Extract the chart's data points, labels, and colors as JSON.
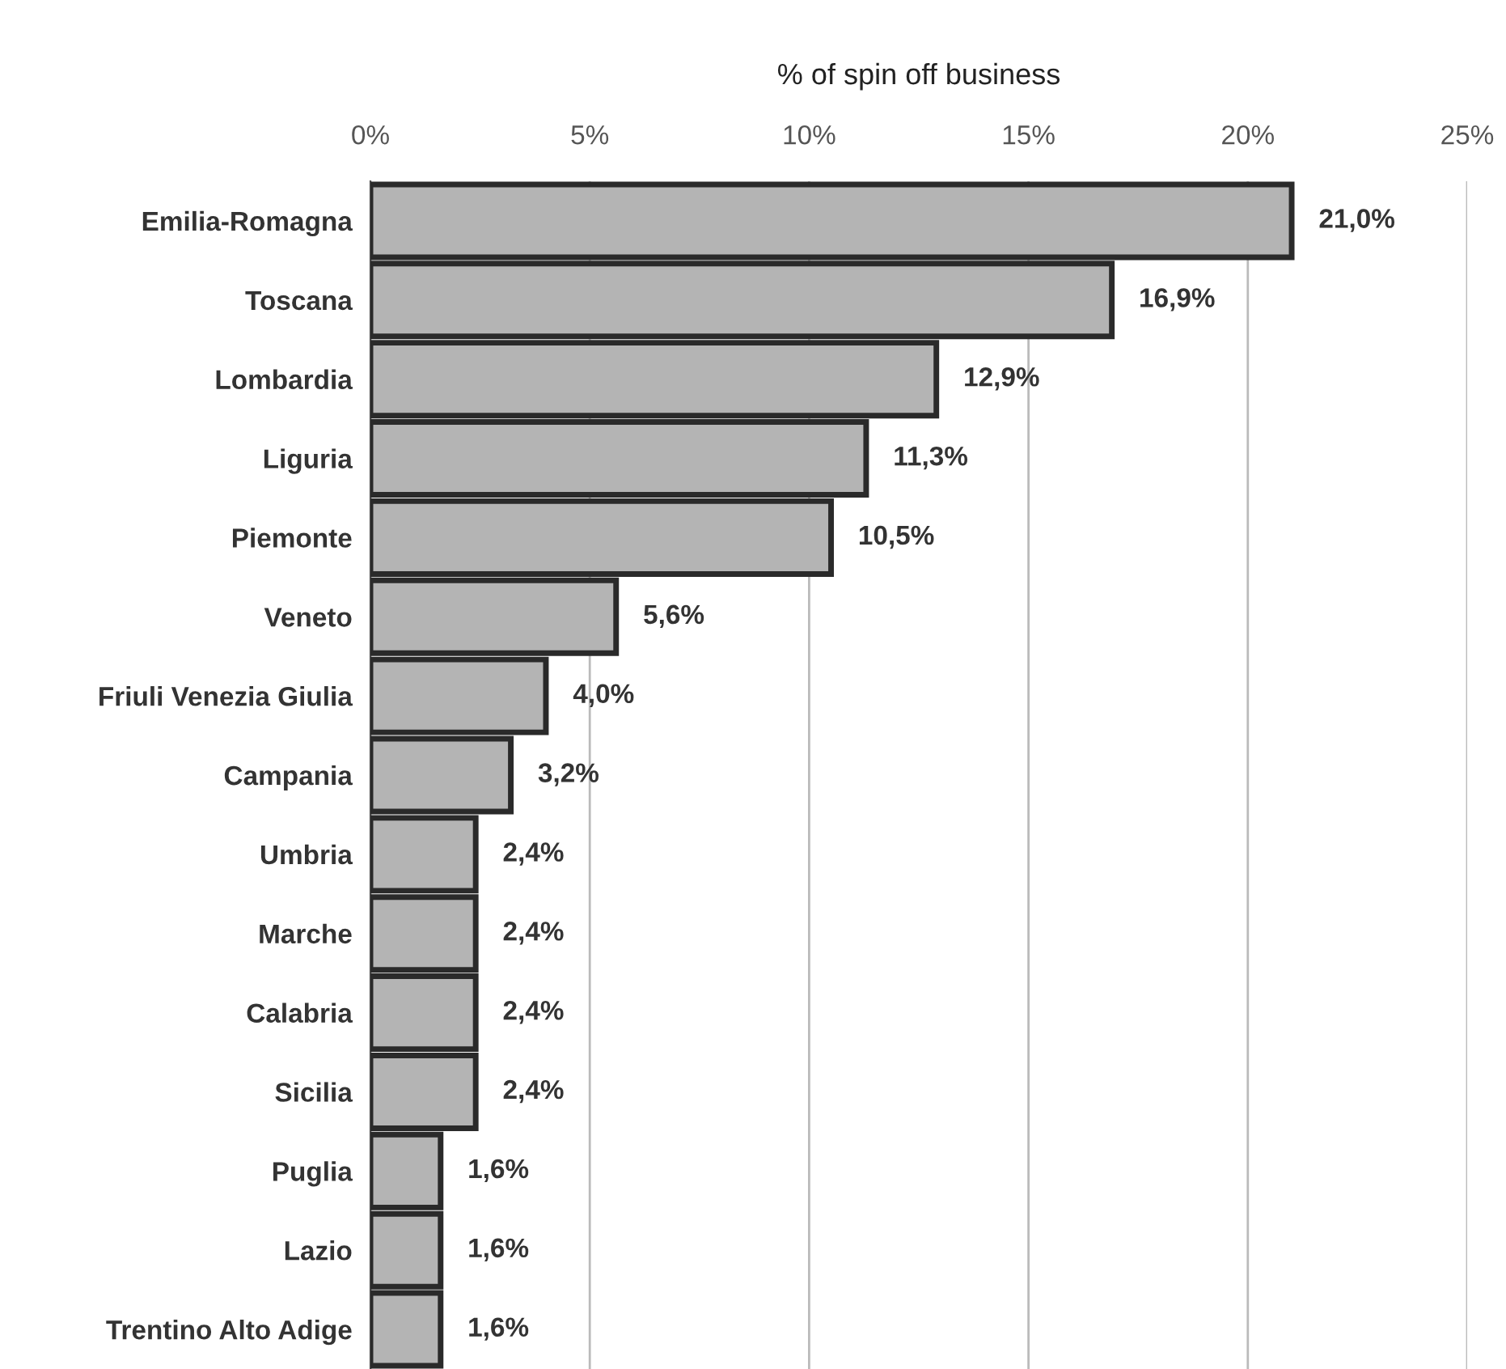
{
  "chart_data": {
    "type": "bar",
    "orientation": "horizontal",
    "xlabel": "% of spin off business",
    "categories": [
      "Emilia-Romagna",
      "Toscana",
      "Lombardia",
      "Liguria",
      "Piemonte",
      "Veneto",
      "Friuli Venezia Giulia",
      "Campania",
      "Umbria",
      "Marche",
      "Calabria",
      "Sicilia",
      "Puglia",
      "Lazio",
      "Trentino Alto Adige"
    ],
    "values": [
      21.0,
      16.9,
      12.9,
      11.3,
      10.5,
      5.6,
      4.0,
      3.2,
      2.4,
      2.4,
      2.4,
      2.4,
      1.6,
      1.6,
      1.6
    ],
    "value_labels": [
      "21,0%",
      "16,9%",
      "12,9%",
      "11,3%",
      "10,5%",
      "5,6%",
      "4,0%",
      "3,2%",
      "2,4%",
      "2,4%",
      "2,4%",
      "2,4%",
      "1,6%",
      "1,6%",
      "1,6%"
    ],
    "color": "#b4b4b4",
    "xlim": [
      0,
      25
    ],
    "xticks": [
      {
        "value": 0,
        "label": "0%"
      },
      {
        "value": 5,
        "label": "5%"
      },
      {
        "value": 10,
        "label": "10%"
      },
      {
        "value": 15,
        "label": "15%"
      },
      {
        "value": 20,
        "label": "20%"
      },
      {
        "value": 25,
        "label": "25%"
      }
    ],
    "grid": "x"
  }
}
